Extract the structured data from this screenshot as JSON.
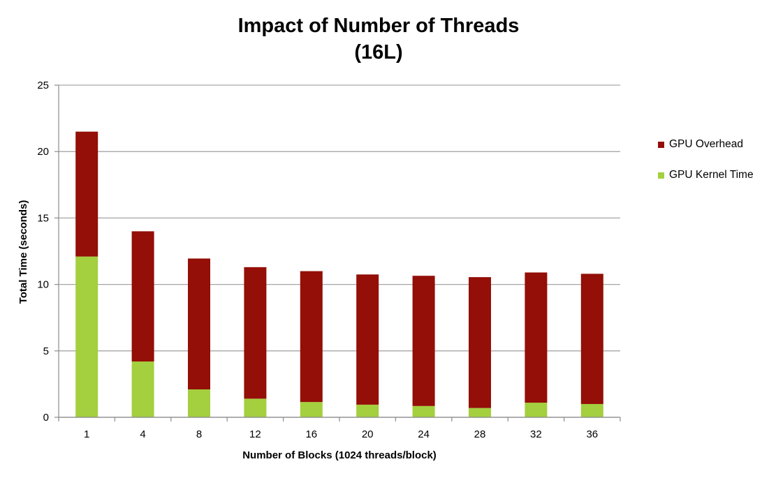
{
  "chart_data": {
    "type": "bar",
    "stacked": true,
    "title_lines": [
      "Impact of Number of Threads",
      "(16L)"
    ],
    "xlabel": "Number of Blocks (1024 threads/block)",
    "ylabel": "Total Time (seconds)",
    "categories": [
      "1",
      "4",
      "8",
      "12",
      "16",
      "20",
      "24",
      "28",
      "32",
      "36"
    ],
    "ylim": [
      0,
      25
    ],
    "yticks": [
      "0",
      "5",
      "10",
      "15",
      "20",
      "25"
    ],
    "grid": true,
    "legend_position": "right",
    "series": [
      {
        "name": "GPU Kernel Time",
        "color": "#a4cf3f",
        "values": [
          12.1,
          4.2,
          2.1,
          1.4,
          1.15,
          0.95,
          0.85,
          0.7,
          1.1,
          1.0
        ]
      },
      {
        "name": "GPU Overhead",
        "color": "#930f07",
        "values": [
          9.4,
          9.8,
          9.85,
          9.9,
          9.85,
          9.8,
          9.8,
          9.85,
          9.8,
          9.8
        ]
      }
    ],
    "legend": [
      {
        "name": "GPU Overhead",
        "color": "#930f07"
      },
      {
        "name": "GPU Kernel Time",
        "color": "#a4cf3f"
      }
    ]
  }
}
